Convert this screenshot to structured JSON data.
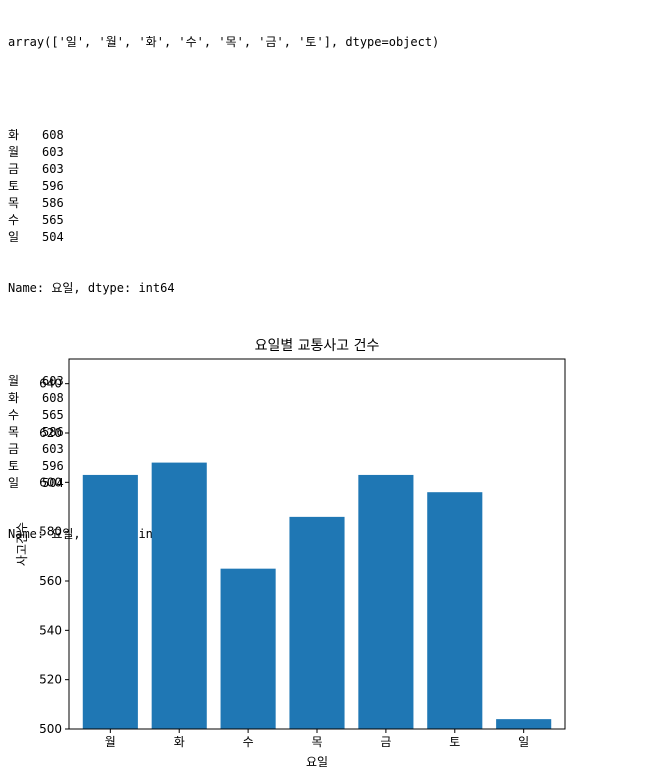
{
  "output": {
    "array_line": "array(['일', '월', '화', '수', '목', '금', '토'], dtype=object)",
    "block1": [
      {
        "k": "화",
        "v": "608"
      },
      {
        "k": "월",
        "v": "603"
      },
      {
        "k": "금",
        "v": "603"
      },
      {
        "k": "토",
        "v": "596"
      },
      {
        "k": "목",
        "v": "586"
      },
      {
        "k": "수",
        "v": "565"
      },
      {
        "k": "일",
        "v": "504"
      }
    ],
    "footer1": "Name: 요일, dtype: int64",
    "block2": [
      {
        "k": "월",
        "v": "603"
      },
      {
        "k": "화",
        "v": "608"
      },
      {
        "k": "수",
        "v": "565"
      },
      {
        "k": "목",
        "v": "586"
      },
      {
        "k": "금",
        "v": "603"
      },
      {
        "k": "토",
        "v": "596"
      },
      {
        "k": "일",
        "v": "504"
      }
    ],
    "footer2": "Name: 요일, dtype: int64"
  },
  "chart_data": {
    "type": "bar",
    "title": "요일별 교통사고 건수",
    "xlabel": "요일",
    "ylabel": "사고건수",
    "categories": [
      "월",
      "화",
      "수",
      "목",
      "금",
      "토",
      "일"
    ],
    "values": [
      603,
      608,
      565,
      586,
      603,
      596,
      504
    ],
    "ylim": [
      500,
      650
    ],
    "yticks": [
      500,
      520,
      540,
      560,
      580,
      600,
      620,
      640
    ],
    "bar_color": "#1f77b4",
    "grid": false
  }
}
